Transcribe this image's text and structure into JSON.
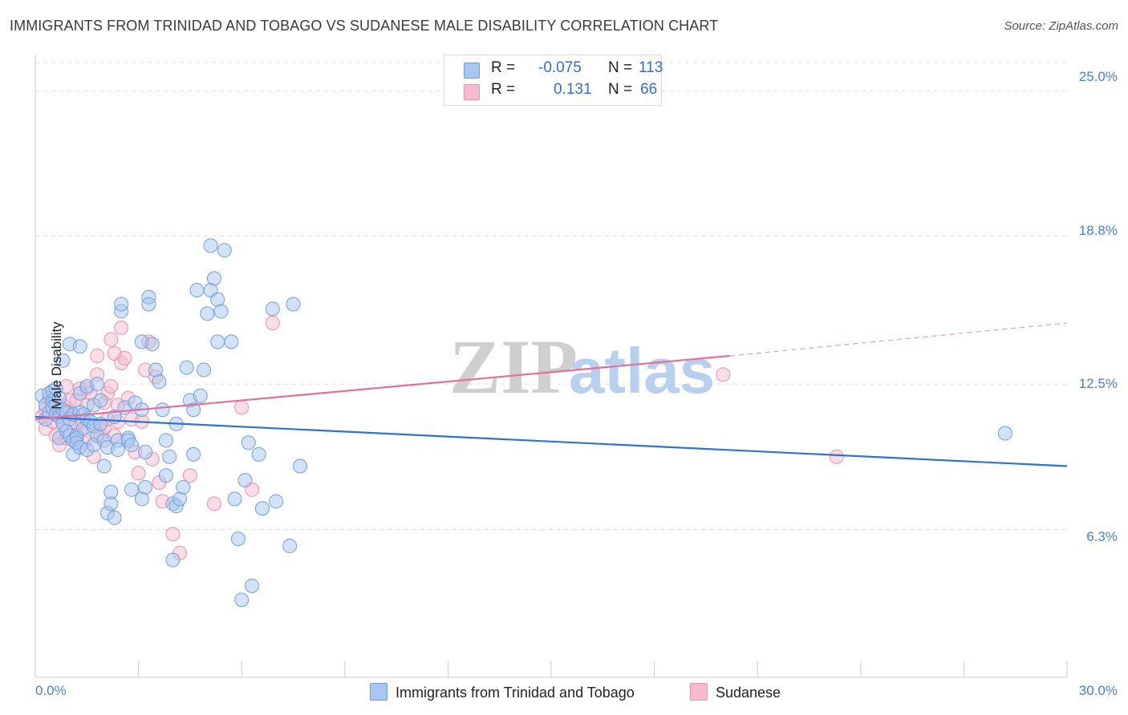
{
  "title": "IMMIGRANTS FROM TRINIDAD AND TOBAGO VS SUDANESE MALE DISABILITY CORRELATION CHART",
  "source": "Source: ZipAtlas.com",
  "watermark": {
    "zip": "ZIP",
    "atlas": "atlas"
  },
  "legend": {
    "rows": [
      {
        "r_label": "R =",
        "r_value": "-0.075",
        "n_label": "N =",
        "n_value": "113"
      },
      {
        "r_label": "R =",
        "r_value": "0.131",
        "n_label": "N =",
        "n_value": "66"
      }
    ]
  },
  "bottom_legend": [
    "Immigrants from Trinidad and Tobago",
    "Sudanese"
  ],
  "colors": {
    "blue_fill": "#a9c6f0",
    "blue_stroke": "#6f9fe0",
    "blue_line": "#2f72d0",
    "pink_fill": "#f6bccd",
    "pink_stroke": "#ee90ad",
    "pink_line": "#e27099",
    "tick_text": "#4a7fcf",
    "grid": "#dddddd"
  },
  "chart_data": {
    "type": "scatter",
    "title": "IMMIGRANTS FROM TRINIDAD AND TOBAGO VS SUDANESE MALE DISABILITY CORRELATION CHART",
    "xlabel": "",
    "ylabel": "Male Disability",
    "xlim": [
      0,
      30
    ],
    "ylim": [
      0,
      26.2
    ],
    "x_tick_labels": [
      "0.0%",
      "30.0%"
    ],
    "y_ticks": [
      6.3,
      12.5,
      18.8,
      25.0
    ],
    "y_tick_labels": [
      "6.3%",
      "12.5%",
      "18.8%",
      "25.0%"
    ],
    "grid": true,
    "legend_position": "top-center",
    "series": [
      {
        "name": "Immigrants from Trinidad and Tobago",
        "color": "#a9c6f0",
        "R": -0.075,
        "N": 113,
        "trend": {
          "x": [
            0,
            30
          ],
          "y": [
            11.1,
            9.0
          ]
        },
        "points": [
          [
            0.2,
            12.0
          ],
          [
            0.3,
            11.6
          ],
          [
            0.3,
            11.0
          ],
          [
            0.4,
            12.1
          ],
          [
            0.4,
            11.3
          ],
          [
            0.5,
            11.8
          ],
          [
            0.5,
            12.2
          ],
          [
            0.5,
            11.5
          ],
          [
            0.6,
            11.2
          ],
          [
            0.6,
            12.3
          ],
          [
            0.6,
            11.6
          ],
          [
            0.7,
            11.9
          ],
          [
            0.7,
            11.1
          ],
          [
            0.7,
            10.2
          ],
          [
            0.8,
            13.5
          ],
          [
            0.8,
            11.4
          ],
          [
            0.8,
            10.8
          ],
          [
            0.9,
            10.5
          ],
          [
            0.9,
            11.3
          ],
          [
            1.0,
            11.0
          ],
          [
            1.0,
            10.3
          ],
          [
            1.0,
            14.2
          ],
          [
            1.1,
            11.2
          ],
          [
            1.1,
            10.1
          ],
          [
            1.1,
            9.5
          ],
          [
            1.2,
            10.3
          ],
          [
            1.2,
            10.2
          ],
          [
            1.2,
            10.0
          ],
          [
            1.3,
            11.3
          ],
          [
            1.3,
            9.8
          ],
          [
            1.3,
            12.1
          ],
          [
            1.3,
            14.1
          ],
          [
            1.4,
            10.6
          ],
          [
            1.4,
            11.2
          ],
          [
            1.5,
            9.7
          ],
          [
            1.5,
            11.0
          ],
          [
            1.5,
            12.4
          ],
          [
            1.6,
            10.9
          ],
          [
            1.7,
            11.6
          ],
          [
            1.7,
            10.7
          ],
          [
            1.7,
            9.9
          ],
          [
            1.8,
            12.5
          ],
          [
            1.8,
            10.3
          ],
          [
            1.9,
            11.8
          ],
          [
            1.9,
            10.8
          ],
          [
            2.0,
            10.1
          ],
          [
            2.0,
            9.0
          ],
          [
            2.1,
            9.8
          ],
          [
            2.1,
            7.0
          ],
          [
            2.2,
            7.4
          ],
          [
            2.2,
            7.9
          ],
          [
            2.3,
            6.8
          ],
          [
            2.3,
            11.1
          ],
          [
            2.4,
            10.1
          ],
          [
            2.4,
            9.7
          ],
          [
            2.5,
            15.6
          ],
          [
            2.5,
            15.9
          ],
          [
            2.6,
            11.5
          ],
          [
            2.7,
            10.2
          ],
          [
            2.7,
            10.1
          ],
          [
            2.8,
            9.9
          ],
          [
            2.8,
            8.0
          ],
          [
            2.9,
            11.7
          ],
          [
            3.1,
            7.6
          ],
          [
            3.1,
            11.4
          ],
          [
            3.1,
            14.3
          ],
          [
            3.2,
            9.6
          ],
          [
            3.2,
            8.1
          ],
          [
            3.3,
            16.2
          ],
          [
            3.3,
            15.9
          ],
          [
            3.4,
            14.2
          ],
          [
            3.5,
            13.1
          ],
          [
            3.6,
            12.6
          ],
          [
            3.7,
            11.4
          ],
          [
            3.8,
            8.6
          ],
          [
            3.8,
            10.1
          ],
          [
            3.9,
            9.4
          ],
          [
            4.0,
            5.0
          ],
          [
            4.0,
            7.4
          ],
          [
            4.1,
            10.8
          ],
          [
            4.1,
            7.3
          ],
          [
            4.2,
            7.6
          ],
          [
            4.3,
            8.1
          ],
          [
            4.4,
            13.2
          ],
          [
            4.5,
            11.8
          ],
          [
            4.6,
            11.4
          ],
          [
            4.6,
            9.5
          ],
          [
            4.7,
            16.5
          ],
          [
            4.8,
            12.0
          ],
          [
            4.9,
            13.1
          ],
          [
            5.0,
            15.5
          ],
          [
            5.1,
            16.5
          ],
          [
            5.1,
            18.4
          ],
          [
            5.2,
            17.0
          ],
          [
            5.3,
            16.1
          ],
          [
            5.3,
            14.3
          ],
          [
            5.4,
            15.6
          ],
          [
            5.5,
            18.2
          ],
          [
            5.7,
            14.3
          ],
          [
            5.8,
            7.6
          ],
          [
            5.9,
            5.9
          ],
          [
            6.0,
            3.3
          ],
          [
            6.1,
            8.4
          ],
          [
            6.2,
            10.0
          ],
          [
            6.3,
            3.9
          ],
          [
            6.5,
            9.5
          ],
          [
            6.6,
            7.2
          ],
          [
            6.9,
            15.7
          ],
          [
            7.0,
            7.5
          ],
          [
            7.4,
            5.6
          ],
          [
            7.5,
            15.9
          ],
          [
            7.7,
            9.0
          ],
          [
            28.2,
            10.4
          ]
        ]
      },
      {
        "name": "Sudanese",
        "color": "#f6bccd",
        "R": 0.131,
        "N": 66,
        "trend": {
          "x": [
            0,
            20.2
          ],
          "y": [
            11.0,
            13.7
          ]
        },
        "trend_dashed": {
          "x": [
            20.2,
            30
          ],
          "y": [
            13.7,
            15.1
          ]
        },
        "points": [
          [
            0.2,
            11.1
          ],
          [
            0.3,
            10.6
          ],
          [
            0.3,
            11.4
          ],
          [
            0.4,
            11.9
          ],
          [
            0.5,
            10.9
          ],
          [
            0.5,
            11.7
          ],
          [
            0.6,
            10.3
          ],
          [
            0.6,
            11.5
          ],
          [
            0.7,
            11.2
          ],
          [
            0.7,
            9.9
          ],
          [
            0.8,
            10.9
          ],
          [
            0.8,
            11.6
          ],
          [
            0.9,
            12.4
          ],
          [
            0.9,
            10.2
          ],
          [
            1.0,
            11.3
          ],
          [
            1.0,
            11.8
          ],
          [
            1.1,
            11.2
          ],
          [
            1.1,
            10.1
          ],
          [
            1.2,
            10.8
          ],
          [
            1.2,
            11.8
          ],
          [
            1.3,
            12.3
          ],
          [
            1.3,
            10.5
          ],
          [
            1.4,
            10.9
          ],
          [
            1.4,
            10.0
          ],
          [
            1.5,
            11.6
          ],
          [
            1.5,
            12.3
          ],
          [
            1.6,
            12.1
          ],
          [
            1.7,
            9.4
          ],
          [
            1.7,
            10.5
          ],
          [
            1.8,
            13.7
          ],
          [
            1.8,
            12.9
          ],
          [
            1.9,
            10.3
          ],
          [
            1.9,
            10.8
          ],
          [
            2.0,
            11.7
          ],
          [
            2.0,
            10.6
          ],
          [
            2.1,
            11.0
          ],
          [
            2.1,
            12.1
          ],
          [
            2.2,
            12.4
          ],
          [
            2.2,
            14.4
          ],
          [
            2.3,
            10.3
          ],
          [
            2.3,
            13.8
          ],
          [
            2.4,
            11.6
          ],
          [
            2.4,
            10.9
          ],
          [
            2.5,
            13.4
          ],
          [
            2.5,
            14.9
          ],
          [
            2.6,
            13.6
          ],
          [
            2.7,
            11.9
          ],
          [
            2.8,
            11.0
          ],
          [
            2.9,
            9.6
          ],
          [
            3.0,
            8.7
          ],
          [
            3.1,
            10.9
          ],
          [
            3.2,
            13.1
          ],
          [
            3.3,
            14.3
          ],
          [
            3.4,
            9.3
          ],
          [
            3.5,
            12.8
          ],
          [
            3.6,
            8.3
          ],
          [
            3.7,
            7.5
          ],
          [
            4.0,
            6.1
          ],
          [
            4.2,
            5.3
          ],
          [
            4.5,
            8.6
          ],
          [
            5.2,
            7.4
          ],
          [
            6.0,
            11.5
          ],
          [
            6.3,
            8.0
          ],
          [
            6.9,
            15.1
          ],
          [
            20.0,
            12.9
          ],
          [
            23.3,
            9.4
          ]
        ]
      }
    ]
  }
}
